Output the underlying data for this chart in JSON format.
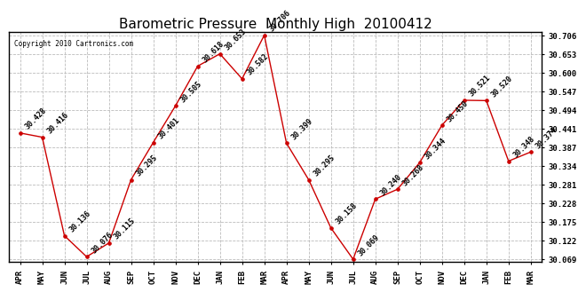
{
  "title": "Barometric Pressure  Monthly High  20100412",
  "copyright": "Copyright 2010 Cartronics.com",
  "x_labels": [
    "APR",
    "MAY",
    "JUN",
    "JUL",
    "AUG",
    "SEP",
    "OCT",
    "NOV",
    "DEC",
    "JAN",
    "FEB",
    "MAR",
    "APR",
    "MAY",
    "JUN",
    "JUL",
    "AUG",
    "SEP",
    "OCT",
    "NOV",
    "DEC",
    "JAN",
    "FEB",
    "MAR"
  ],
  "y_values": [
    30.428,
    30.416,
    30.136,
    30.076,
    30.115,
    30.295,
    30.401,
    30.505,
    30.618,
    30.653,
    30.582,
    30.706,
    30.399,
    30.295,
    30.158,
    30.069,
    30.24,
    30.268,
    30.344,
    30.45,
    30.521,
    30.52,
    30.348,
    30.374
  ],
  "y_min": 30.069,
  "y_max": 30.706,
  "line_color": "#cc0000",
  "marker_color": "#cc0000",
  "background_color": "#ffffff",
  "grid_color": "#bbbbbb",
  "title_fontsize": 11,
  "annot_fontsize": 6.0,
  "tick_fontsize": 6.5,
  "y_ticks": [
    30.069,
    30.122,
    30.175,
    30.228,
    30.281,
    30.334,
    30.387,
    30.441,
    30.494,
    30.547,
    30.6,
    30.653,
    30.706
  ]
}
